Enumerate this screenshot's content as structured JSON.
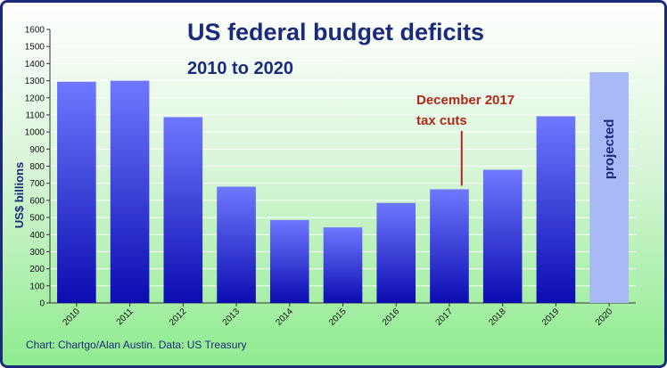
{
  "chart_data": {
    "type": "bar",
    "title": "US federal budget deficits",
    "subtitle": "2010 to 2020",
    "ylabel": "US$ billions",
    "xlabel": "",
    "categories": [
      "2010",
      "2011",
      "2012",
      "2013",
      "2014",
      "2015",
      "2016",
      "2017",
      "2018",
      "2019",
      "2020"
    ],
    "values": [
      1294,
      1300,
      1087,
      680,
      485,
      442,
      585,
      665,
      779,
      1092,
      1350
    ],
    "projected_index": 10,
    "projected_label": "projected",
    "ylim": [
      0,
      1600
    ],
    "yticks": [
      0,
      100,
      200,
      300,
      400,
      500,
      600,
      700,
      800,
      900,
      1000,
      1100,
      1200,
      1300,
      1400,
      1500,
      1600
    ],
    "grid": true,
    "annotation": {
      "line1": "December 2017",
      "line2": "tax cuts",
      "category": "2017"
    },
    "source": "Chart: Chartgo/Alan Austin. Data: US Treasury",
    "colors": {
      "bar_top": "#6f78ff",
      "bar_bottom": "#0b0bb0",
      "projected": "#a8b8f4",
      "title": "#1b2a7a",
      "annotation": "#b0281c",
      "frame": "#1b2a7a"
    }
  }
}
